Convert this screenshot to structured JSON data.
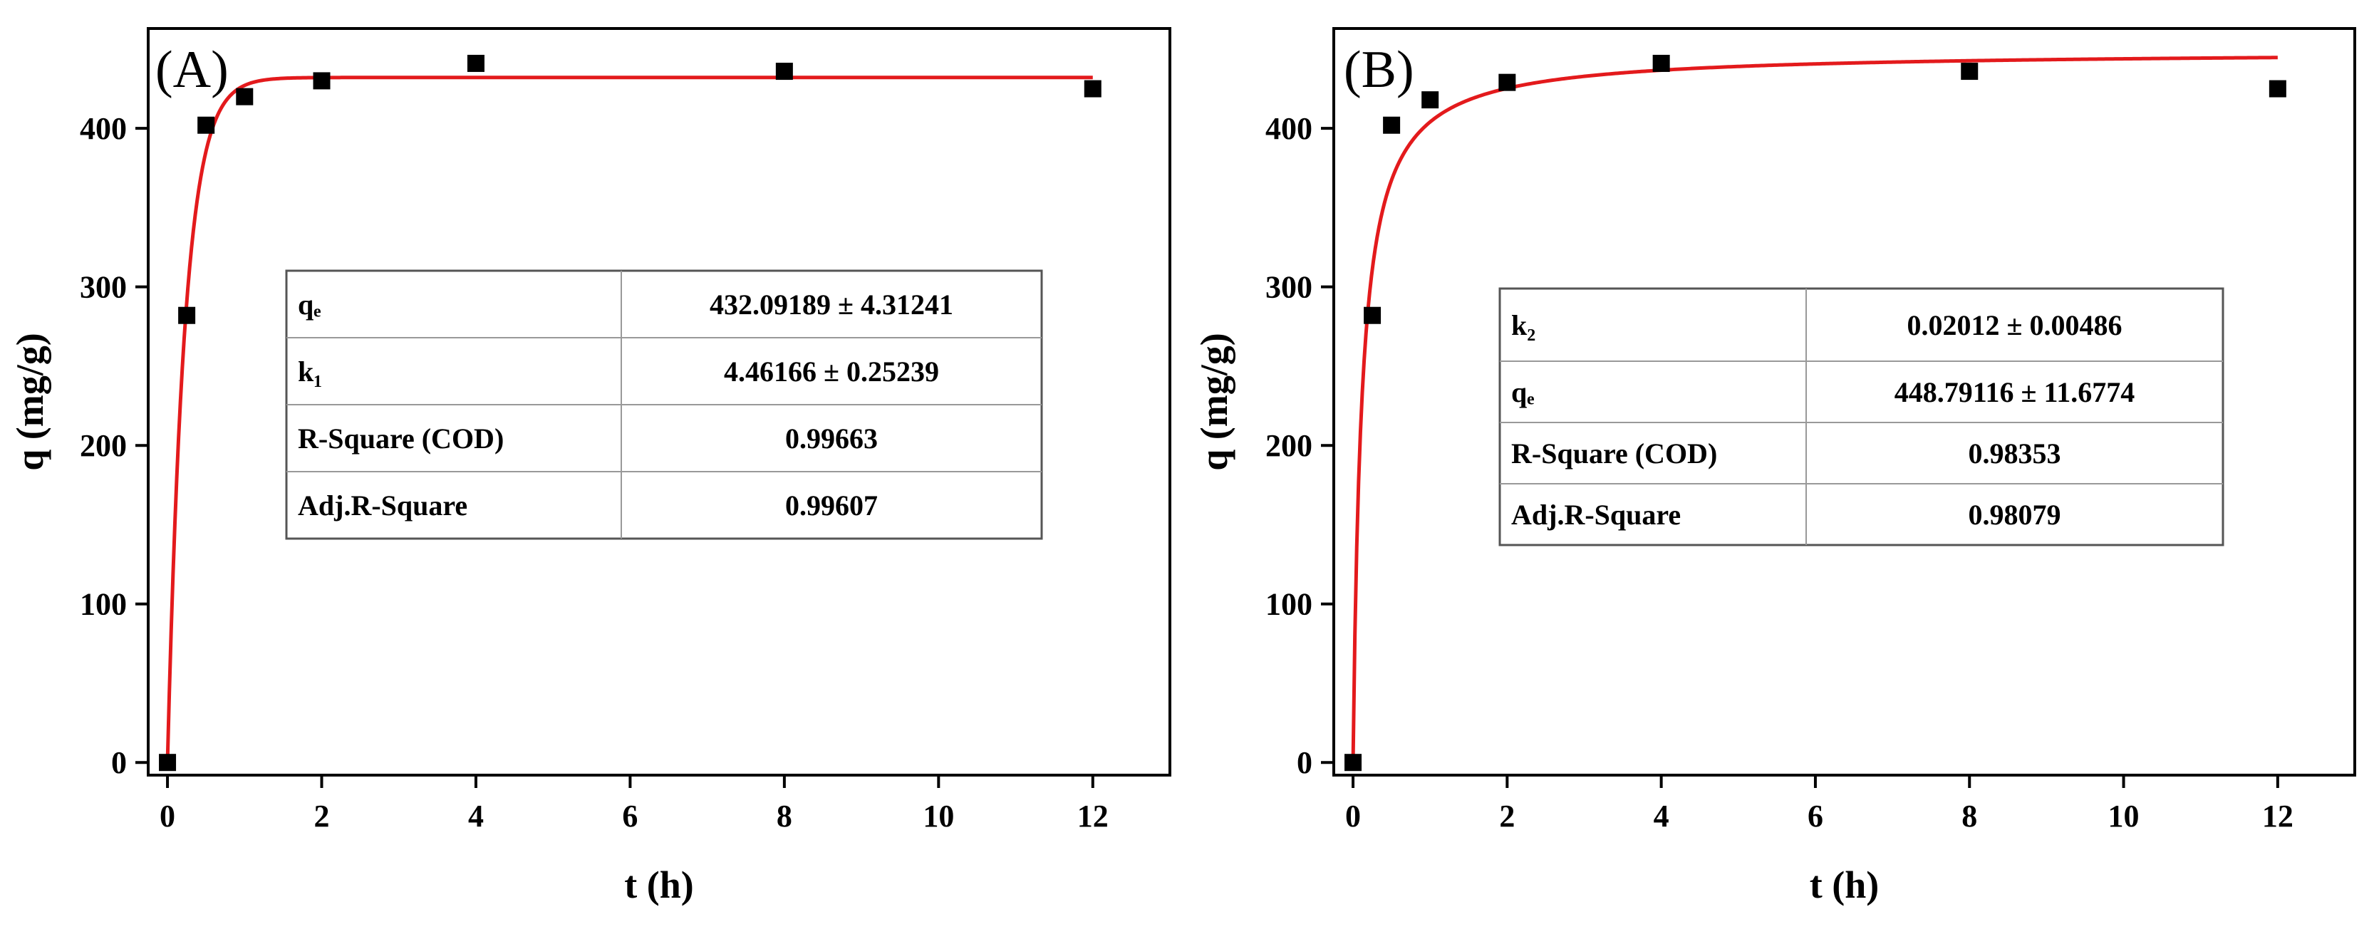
{
  "chart_data": [
    {
      "type": "scatter",
      "panel_label": "(A)",
      "xlabel": "t (h)",
      "ylabel": "q (mg/g)",
      "xlim": [
        -0.25,
        13
      ],
      "ylim": [
        -8,
        463
      ],
      "x_ticks": [
        0,
        2,
        4,
        6,
        8,
        10,
        12
      ],
      "y_ticks": [
        0,
        100,
        200,
        300,
        400
      ],
      "x_tick_labels": [
        "0",
        "2",
        "4",
        "6",
        "8",
        "10",
        "12"
      ],
      "y_tick_labels": [
        "0",
        "100",
        "200",
        "300",
        "400"
      ],
      "grid": false,
      "legend": "none",
      "points": {
        "x": [
          0,
          0.25,
          0.5,
          1,
          2,
          4,
          8,
          12
        ],
        "y": [
          0,
          282,
          402,
          420,
          430,
          441,
          436,
          425
        ]
      },
      "fit": {
        "model": "pseudo-first-order",
        "qe": 432.09189,
        "k": 4.46166,
        "color": "#e31a1c"
      },
      "marker_color": "#000000",
      "table": [
        {
          "param": "qₑ",
          "value": "432.09189 ± 4.31241"
        },
        {
          "param": "k₁",
          "value": "4.46166 ± 0.25239"
        },
        {
          "param": "R-Square (COD)",
          "value": "0.99663"
        },
        {
          "param": "Adj.R-Square",
          "value": "0.99607"
        }
      ]
    },
    {
      "type": "scatter",
      "panel_label": "(B)",
      "xlabel": "t (h)",
      "ylabel": "q (mg/g)",
      "xlim": [
        -0.25,
        13
      ],
      "ylim": [
        -8,
        463
      ],
      "x_ticks": [
        0,
        2,
        4,
        6,
        8,
        10,
        12
      ],
      "y_ticks": [
        0,
        100,
        200,
        300,
        400
      ],
      "x_tick_labels": [
        "0",
        "2",
        "4",
        "6",
        "8",
        "10",
        "12"
      ],
      "y_tick_labels": [
        "0",
        "100",
        "200",
        "300",
        "400"
      ],
      "grid": false,
      "legend": "none",
      "points": {
        "x": [
          0,
          0.25,
          0.5,
          1,
          2,
          4,
          8,
          12
        ],
        "y": [
          0,
          282,
          402,
          418,
          429,
          441,
          436,
          425
        ]
      },
      "fit": {
        "model": "pseudo-second-order",
        "qe": 448.79116,
        "k": 0.02012,
        "color": "#e31a1c"
      },
      "marker_color": "#000000",
      "table": [
        {
          "param": "k₂",
          "value": "0.02012 ± 0.00486"
        },
        {
          "param": "qₑ",
          "value": "448.79116 ± 11.6774"
        },
        {
          "param": "R-Square (COD)",
          "value": "0.98353"
        },
        {
          "param": "Adj.R-Square",
          "value": "0.98079"
        }
      ]
    }
  ]
}
